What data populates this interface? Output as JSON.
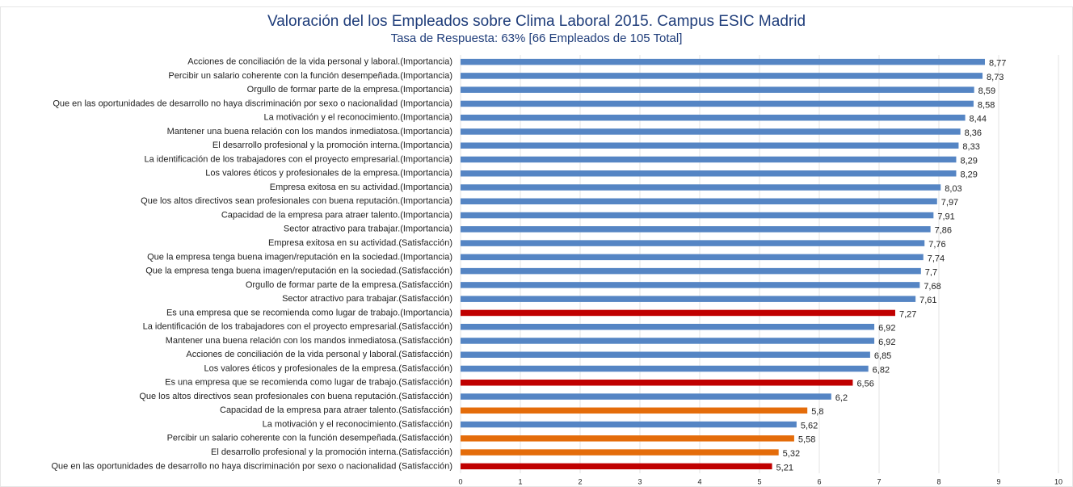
{
  "chart_data": {
    "type": "barh",
    "title": "Valoración del los Empleados sobre Clima Laboral 2015. Campus ESIC Madrid",
    "subtitle": "Tasa de Respuesta: 63% [66 Empleados de 105 Total]",
    "categories": [
      "Acciones de conciliación de la vida personal y laboral.(Importancia)",
      "Percibir un salario coherente con la función desempeñada.(Importancia)",
      "Orgullo de formar parte de la empresa.(Importancia)",
      "Que en las oportunidades de desarrollo no haya discriminación por sexo o nacionalidad (Importancia)",
      "La motivación y el reconocimiento.(Importancia)",
      "Mantener una buena relación con los mandos inmediatosa.(Importancia)",
      "El desarrollo profesional y la promoción interna.(Importancia)",
      "La identificación de los trabajadores con el proyecto empresarial.(Importancia)",
      "Los valores éticos y profesionales de la empresa.(Importancia)",
      "Empresa exitosa en su actividad.(Importancia)",
      "Que los altos directivos sean profesionales con buena reputación.(Importancia)",
      "Capacidad de la empresa para atraer talento.(Importancia)",
      "Sector atractivo para trabajar.(Importancia)",
      "Empresa exitosa en su actividad.(Satisfacción)",
      "Que la empresa tenga buena imagen/reputación en la sociedad.(Importancia)",
      "Que la empresa tenga buena imagen/reputación en la sociedad.(Satisfacción)",
      "Orgullo de formar parte de la empresa.(Satisfacción)",
      "Sector atractivo para trabajar.(Satisfacción)",
      "Es una empresa que se recomienda como lugar de trabajo.(Importancia)",
      "La identificación de los trabajadores con el proyecto empresarial.(Satisfacción)",
      "Mantener una buena relación con los mandos inmediatosa.(Satisfacción)",
      "Acciones de conciliación de la vida personal y laboral.(Satisfacción)",
      "Los valores éticos y profesionales de la empresa.(Satisfacción)",
      "Es una empresa que se recomienda como lugar de trabajo.(Satisfacción)",
      "Que los altos directivos sean profesionales con buena reputación.(Satisfacción)",
      "Capacidad de la empresa para atraer talento.(Satisfacción)",
      "La motivación y el reconocimiento.(Satisfacción)",
      "Percibir un salario coherente con la función desempeñada.(Satisfacción)",
      "El desarrollo profesional y la promoción interna.(Satisfacción)",
      "Que en las oportunidades de desarrollo no haya discriminación por sexo o nacionalidad (Satisfacción)"
    ],
    "values": [
      8.77,
      8.73,
      8.59,
      8.58,
      8.44,
      8.36,
      8.33,
      8.29,
      8.29,
      8.03,
      7.97,
      7.91,
      7.86,
      7.76,
      7.74,
      7.7,
      7.68,
      7.61,
      7.27,
      6.92,
      6.92,
      6.85,
      6.82,
      6.56,
      6.2,
      5.8,
      5.62,
      5.58,
      5.32,
      5.21
    ],
    "value_labels": [
      "8,77",
      "8,73",
      "8,59",
      "8,58",
      "8,44",
      "8,36",
      "8,33",
      "8,29",
      "8,29",
      "8,03",
      "7,97",
      "7,91",
      "7,86",
      "7,76",
      "7,74",
      "7,7",
      "7,68",
      "7,61",
      "7,27",
      "6,92",
      "6,92",
      "6,85",
      "6,82",
      "6,56",
      "6,2",
      "5,8",
      "5,62",
      "5,58",
      "5,32",
      "5,21"
    ],
    "colors": [
      "#5585c4",
      "#5585c4",
      "#5585c4",
      "#5585c4",
      "#5585c4",
      "#5585c4",
      "#5585c4",
      "#5585c4",
      "#5585c4",
      "#5585c4",
      "#5585c4",
      "#5585c4",
      "#5585c4",
      "#5585c4",
      "#5585c4",
      "#5585c4",
      "#5585c4",
      "#5585c4",
      "#c00000",
      "#5585c4",
      "#5585c4",
      "#5585c4",
      "#5585c4",
      "#c00000",
      "#5585c4",
      "#e46c0a",
      "#5585c4",
      "#e46c0a",
      "#e46c0a",
      "#c00000"
    ],
    "xlim": [
      0,
      10
    ],
    "xticks": [
      0,
      1,
      2,
      3,
      4,
      5,
      6,
      7,
      8,
      9,
      10
    ],
    "grid": true
  }
}
